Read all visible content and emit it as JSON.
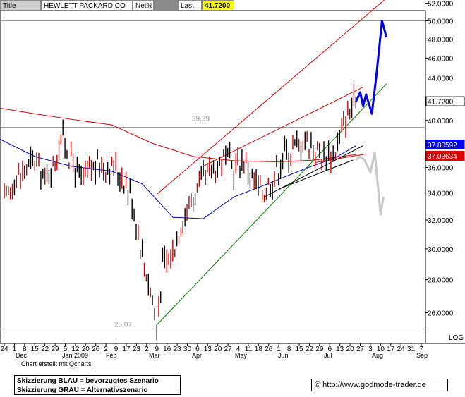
{
  "header": {
    "title": "Title",
    "name": "HEWLETT PACKARD CO",
    "net_label": "Net%",
    "net_value": "",
    "last_label": "Last",
    "last_value": "41.7200"
  },
  "colors": {
    "price": "#000000",
    "candle_down": "#cc0000",
    "ma200": "#dd0000",
    "ma50": "#0000cc",
    "trend_green": "#008000",
    "trend_red": "#dd0000",
    "scenario_blue": "#0000ee",
    "scenario_gray": "#c8c8c8",
    "tag_blue": "#0000ff",
    "tag_red": "#dd0000"
  },
  "chart_data": {
    "type": "line",
    "title": "HEWLETT PACKARD CO",
    "xlabel": "",
    "ylabel": "",
    "yscale": "log",
    "ylim": [
      24.8,
      52.2
    ],
    "grid": false,
    "y_ticks": [
      "52.0000",
      "50.0000",
      "48.0000",
      "46.0000",
      "44.0000",
      "42.0000",
      "40.0000",
      "38.0000",
      "36.0000",
      "34.0000",
      "32.0000",
      "30.0000",
      "28.0000",
      "26.0000"
    ],
    "y_tick_values": [
      52,
      50,
      48,
      46,
      44,
      42,
      40,
      38,
      36,
      34,
      32,
      30,
      28,
      26
    ],
    "x_day_ticks": [
      "24",
      "1",
      "8",
      "15",
      "22",
      "29",
      "5",
      "12",
      "20",
      "26",
      "2",
      "9",
      "17",
      "23",
      "2",
      "9",
      "16",
      "23",
      "30",
      "6",
      "13",
      "20",
      "27",
      "4",
      "11",
      "18",
      "26",
      "1",
      "8",
      "15",
      "22",
      "29",
      "6",
      "13",
      "20",
      "27",
      "3",
      "10",
      "17",
      "24",
      "31",
      "7"
    ],
    "x_month_labels": [
      "Dec",
      "Jan 2009",
      "Feb",
      "Mar",
      "Apr",
      "May",
      "Jun",
      "Jul",
      "Aug",
      "Sep"
    ],
    "horizontal_levels": [
      50.0,
      39.39,
      25.07
    ],
    "level_labels": [
      "39,39",
      "25,07"
    ],
    "price_tags": [
      "41.7200",
      "37.80592",
      "37.03634"
    ],
    "price_series": {
      "name": "",
      "dates": [
        "2008-11-24",
        "2008-12-01",
        "2008-12-08",
        "2008-12-15",
        "2008-12-22",
        "2008-12-29",
        "2009-01-02",
        "2009-01-09",
        "2009-01-16",
        "2009-01-23",
        "2009-01-30",
        "2009-02-06",
        "2009-02-13",
        "2009-02-20",
        "2009-02-27",
        "2009-03-06",
        "2009-03-09",
        "2009-03-13",
        "2009-03-20",
        "2009-03-27",
        "2009-04-03",
        "2009-04-10",
        "2009-04-17",
        "2009-04-24",
        "2009-05-01",
        "2009-05-08",
        "2009-05-15",
        "2009-05-22",
        "2009-05-29",
        "2009-06-05",
        "2009-06-12",
        "2009-06-19",
        "2009-06-26",
        "2009-07-02",
        "2009-07-10",
        "2009-07-17",
        "2009-07-24"
      ],
      "values": [
        33.2,
        35.0,
        35.8,
        36.5,
        35.0,
        36.4,
        38.8,
        36.6,
        34.8,
        35.8,
        36.3,
        36.0,
        35.4,
        33.6,
        29.6,
        26.8,
        25.2,
        28.8,
        29.8,
        32.2,
        33.6,
        35.0,
        35.9,
        36.7,
        36.0,
        36.8,
        34.8,
        34.1,
        35.4,
        37.2,
        37.6,
        38.3,
        37.6,
        36.9,
        37.4,
        40.4,
        41.72
      ]
    },
    "series": [
      {
        "name": "",
        "dates": [
          "2008-11-17",
          "2008-12-15",
          "2009-01-09",
          "2009-02-06",
          "2009-03-06",
          "2009-04-03",
          "2009-05-01",
          "2009-06-01",
          "2009-06-26",
          "2009-07-24"
        ],
        "values": [
          41.2,
          40.6,
          40.1,
          39.6,
          38.0,
          36.9,
          36.55,
          36.45,
          36.6,
          37.05
        ]
      },
      {
        "name": "",
        "dates": [
          "2008-11-17",
          "2008-12-15",
          "2009-01-09",
          "2009-02-06",
          "2009-02-27",
          "2009-03-20",
          "2009-04-10",
          "2009-05-01",
          "2009-05-22",
          "2009-06-19",
          "2009-07-10",
          "2009-07-24"
        ],
        "values": [
          38.6,
          36.9,
          36.1,
          35.7,
          34.7,
          32.2,
          32.1,
          33.7,
          34.6,
          35.9,
          36.8,
          37.8
        ]
      }
    ],
    "trendlines": [
      {
        "role": "trend_green",
        "dates": [
          "2009-03-09",
          "2009-08-14"
        ],
        "values": [
          25.3,
          43.4
        ]
      },
      {
        "role": "trend_red",
        "dates": [
          "2009-03-09",
          "2009-08-14"
        ],
        "values": [
          33.9,
          52.6
        ]
      },
      {
        "role": "trend_red",
        "dates": [
          "2009-04-10",
          "2009-07-29"
        ],
        "values": [
          36.1,
          43.1
        ]
      },
      {
        "role": "trend_blue",
        "dates": [
          "2009-05-22",
          "2009-07-29"
        ],
        "values": [
          33.7,
          37.8
        ]
      },
      {
        "role": "trend_blue",
        "dates": [
          "2009-06-01",
          "2009-07-22"
        ],
        "values": [
          34.3,
          36.6
        ]
      },
      {
        "role": "trend_red",
        "dates": [
          "2009-06-26",
          "2009-07-31"
        ],
        "values": [
          36.4,
          37.1
        ]
      }
    ],
    "scenario_blue": {
      "dates": [
        "2009-07-24",
        "2009-07-27",
        "2009-07-29",
        "2009-07-31",
        "2009-08-04",
        "2009-08-07",
        "2009-08-11",
        "2009-08-14"
      ],
      "values": [
        41.72,
        42.6,
        41.3,
        42.4,
        40.6,
        44.1,
        50.0,
        48.2
      ]
    },
    "scenario_gray": {
      "dates": [
        "2009-07-24",
        "2009-07-27",
        "2009-07-30",
        "2009-08-03",
        "2009-08-06",
        "2009-08-10",
        "2009-08-12"
      ],
      "values": [
        36.6,
        36.9,
        36.6,
        35.6,
        37.2,
        32.4,
        33.7
      ]
    }
  },
  "footer": {
    "credit_prefix": "Chart erstellt mit ",
    "credit_link": "Qcharts",
    "scale_mode": "LOG",
    "note_line1": "Skizzierung BLAU = bevorzugtes Szenario",
    "note_line2": "Skizzierung GRAU = Alternativszenario",
    "copyright": "© http://www.godmode-trader.de"
  }
}
